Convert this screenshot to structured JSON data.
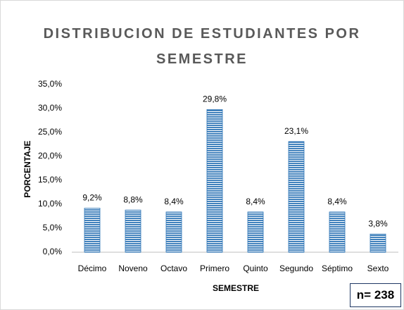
{
  "chart_data": {
    "type": "bar",
    "title": "DISTRIBUCION DE ESTUDIANTES POR SEMESTRE",
    "xlabel": "SEMESTRE",
    "ylabel": "PORCENTAJE",
    "annotation": "n= 238",
    "categories": [
      "Décimo",
      "Noveno",
      "Octavo",
      "Primero",
      "Quinto",
      "Segundo",
      "Séptimo",
      "Sexto"
    ],
    "values": [
      9.2,
      8.8,
      8.4,
      29.8,
      8.4,
      23.1,
      8.4,
      3.8
    ],
    "value_labels": [
      "9,2%",
      "8,8%",
      "8,4%",
      "29,8%",
      "8,4%",
      "23,1%",
      "8,4%",
      "3,8%"
    ],
    "color": "#2e75b6",
    "ylim": [
      0,
      35
    ],
    "yticks": [
      {
        "value": 0,
        "label": "0,0%"
      },
      {
        "value": 5,
        "label": "5,0%"
      },
      {
        "value": 10,
        "label": "10,0%"
      },
      {
        "value": 15,
        "label": "15,0%"
      },
      {
        "value": 20,
        "label": "20,0%"
      },
      {
        "value": 25,
        "label": "25,0%"
      },
      {
        "value": 30,
        "label": "30,0%"
      },
      {
        "value": 35,
        "label": "35,0%"
      }
    ],
    "grid": false
  }
}
